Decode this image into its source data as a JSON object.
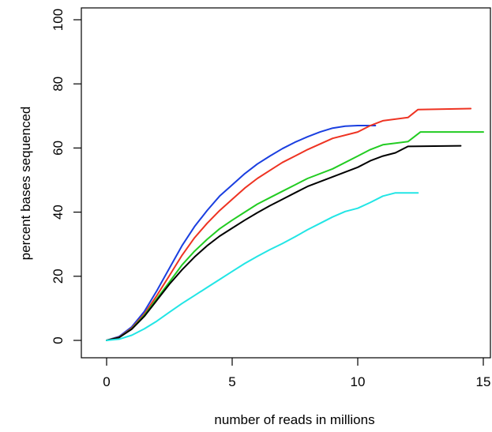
{
  "chart_data": {
    "type": "line",
    "title": "",
    "xlabel": "number of reads in millions",
    "ylabel": "percent bases sequenced",
    "xlim": [
      -1,
      15
    ],
    "ylim": [
      -3,
      102
    ],
    "x_ticks": [
      0,
      5,
      10,
      15
    ],
    "y_ticks": [
      0,
      20,
      40,
      60,
      80,
      100
    ],
    "grid": false,
    "legend": "none",
    "series": [
      {
        "color": "#1a3fe0",
        "points": [
          [
            0,
            0
          ],
          [
            0.5,
            1.2
          ],
          [
            1,
            4.2
          ],
          [
            1.5,
            9
          ],
          [
            2,
            15.5
          ],
          [
            2.5,
            22.5
          ],
          [
            3,
            29.5
          ],
          [
            3.5,
            35.5
          ],
          [
            4,
            40.5
          ],
          [
            4.5,
            45
          ],
          [
            5,
            48.5
          ],
          [
            5.5,
            52
          ],
          [
            6,
            55
          ],
          [
            6.5,
            57.5
          ],
          [
            7,
            59.8
          ],
          [
            7.5,
            61.8
          ],
          [
            8,
            63.5
          ],
          [
            8.5,
            65
          ],
          [
            9,
            66.2
          ],
          [
            9.5,
            66.8
          ],
          [
            10,
            67
          ],
          [
            10.7,
            67
          ]
        ]
      },
      {
        "color": "#ee3322",
        "points": [
          [
            0,
            0
          ],
          [
            0.5,
            1
          ],
          [
            1,
            3.8
          ],
          [
            1.5,
            8.2
          ],
          [
            2,
            14
          ],
          [
            2.5,
            20.2
          ],
          [
            3,
            26.5
          ],
          [
            3.5,
            32
          ],
          [
            4,
            36.5
          ],
          [
            4.5,
            40.5
          ],
          [
            5,
            44
          ],
          [
            5.5,
            47.5
          ],
          [
            6,
            50.5
          ],
          [
            6.5,
            53
          ],
          [
            7,
            55.5
          ],
          [
            7.5,
            57.5
          ],
          [
            8,
            59.5
          ],
          [
            9,
            63
          ],
          [
            10,
            65
          ],
          [
            10.5,
            67
          ],
          [
            11,
            68.5
          ],
          [
            12,
            69.5
          ],
          [
            12.4,
            72
          ],
          [
            14.5,
            72.3
          ]
        ]
      },
      {
        "color": "#22cc22",
        "points": [
          [
            0,
            0
          ],
          [
            0.5,
            0.9
          ],
          [
            1,
            3.6
          ],
          [
            1.5,
            7.8
          ],
          [
            2,
            13
          ],
          [
            2.5,
            18.2
          ],
          [
            3,
            23.5
          ],
          [
            3.5,
            27.8
          ],
          [
            4,
            31.5
          ],
          [
            4.5,
            34.8
          ],
          [
            5,
            37.5
          ],
          [
            5.5,
            40
          ],
          [
            6,
            42.5
          ],
          [
            6.5,
            44.5
          ],
          [
            7,
            46.5
          ],
          [
            7.5,
            48.5
          ],
          [
            8,
            50.5
          ],
          [
            9,
            53.5
          ],
          [
            10,
            57.5
          ],
          [
            10.5,
            59.5
          ],
          [
            11,
            61
          ],
          [
            12,
            62
          ],
          [
            12.5,
            65
          ],
          [
            15,
            65
          ]
        ]
      },
      {
        "color": "#000000",
        "points": [
          [
            0,
            0
          ],
          [
            0.5,
            0.9
          ],
          [
            1,
            3.5
          ],
          [
            1.5,
            7.5
          ],
          [
            2,
            12.5
          ],
          [
            2.5,
            17.5
          ],
          [
            3,
            22
          ],
          [
            3.5,
            26
          ],
          [
            4,
            29.5
          ],
          [
            4.5,
            32.5
          ],
          [
            5,
            35
          ],
          [
            5.5,
            37.5
          ],
          [
            6,
            39.8
          ],
          [
            6.5,
            42
          ],
          [
            7,
            44
          ],
          [
            7.5,
            46
          ],
          [
            8,
            48
          ],
          [
            9,
            51
          ],
          [
            10,
            54
          ],
          [
            10.5,
            56
          ],
          [
            11,
            57.5
          ],
          [
            11.5,
            58.5
          ],
          [
            12,
            60.5
          ],
          [
            14.1,
            60.7
          ]
        ]
      },
      {
        "color": "#22e5e5",
        "points": [
          [
            0,
            0
          ],
          [
            0.5,
            0.4
          ],
          [
            1,
            1.6
          ],
          [
            1.5,
            3.6
          ],
          [
            2,
            6
          ],
          [
            2.5,
            8.8
          ],
          [
            3,
            11.5
          ],
          [
            3.5,
            14
          ],
          [
            4,
            16.5
          ],
          [
            4.5,
            19
          ],
          [
            5,
            21.5
          ],
          [
            5.5,
            24
          ],
          [
            6,
            26.2
          ],
          [
            6.5,
            28.3
          ],
          [
            7,
            30.2
          ],
          [
            7.5,
            32.3
          ],
          [
            8,
            34.5
          ],
          [
            8.5,
            36.5
          ],
          [
            9,
            38.5
          ],
          [
            9.5,
            40.2
          ],
          [
            10,
            41.2
          ],
          [
            10.5,
            43
          ],
          [
            11,
            45
          ],
          [
            11.5,
            46
          ],
          [
            12.4,
            46
          ]
        ]
      }
    ]
  }
}
